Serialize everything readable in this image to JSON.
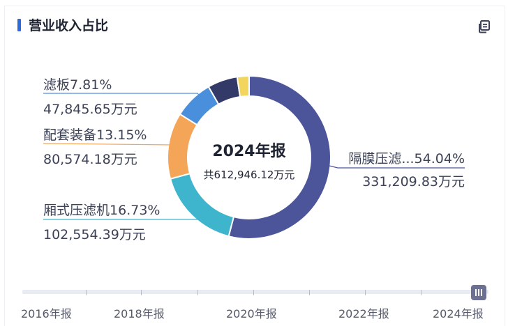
{
  "header": {
    "title": "营业收入占比",
    "copy_icon": "copy-icon"
  },
  "center": {
    "year_label": "2024年报",
    "total_label": "共612,946.12万元"
  },
  "chart_data": {
    "type": "pie",
    "variant": "donut",
    "title": "营业收入占比",
    "center_title": "2024年报",
    "center_subtitle": "共612,946.12万元",
    "slices": [
      {
        "name": "隔膜压滤...",
        "percent": 54.04,
        "value_text": "331,209.83万元",
        "value": 331209.83,
        "color": "#4c5599"
      },
      {
        "name": "厢式压滤机",
        "percent": 16.73,
        "value_text": "102,554.39万元",
        "value": 102554.39,
        "color": "#3fb5cd"
      },
      {
        "name": "配套装备",
        "percent": 13.15,
        "value_text": "80,574.18万元",
        "value": 80574.18,
        "color": "#f4a557"
      },
      {
        "name": "滤板",
        "percent": 7.81,
        "value_text": "47,845.65万元",
        "value": 47845.65,
        "color": "#4a8fdb"
      },
      {
        "name": "",
        "percent": 5.93,
        "value_text": "",
        "value": 36349.0,
        "color": "#343a68"
      },
      {
        "name": "",
        "percent": 2.34,
        "value_text": "",
        "value": 14413.0,
        "color": "#f1d55c"
      }
    ]
  },
  "timeline": {
    "years": [
      "2016年报",
      "2018年报",
      "2020年报",
      "2022年报",
      "2024年报"
    ],
    "selected": "2024年报",
    "handle_icon": "pause-icon"
  }
}
